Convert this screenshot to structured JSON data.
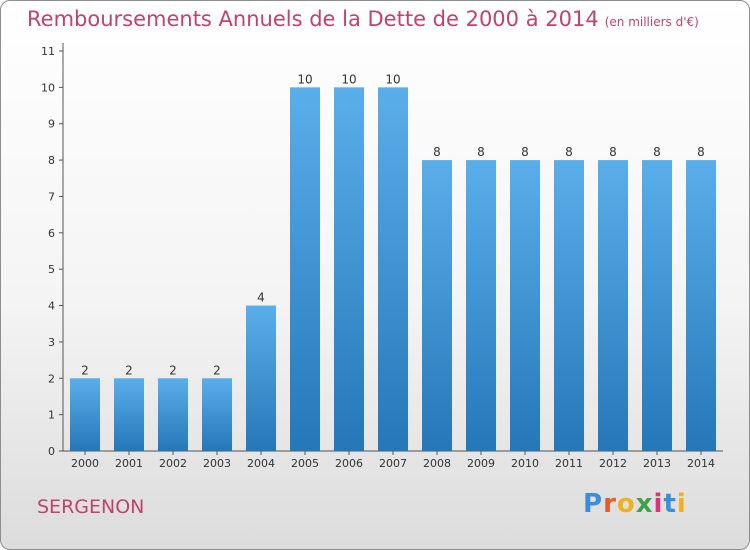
{
  "header": {
    "title": "Remboursements Annuels de la Dette de 2000 à 2014",
    "unit": "(en milliers d'€)"
  },
  "footer": {
    "place": "SERGENON",
    "logo": {
      "letters": [
        "P",
        "r",
        "o",
        "x",
        "i",
        "t",
        "i"
      ],
      "colors": [
        "#3a8fd8",
        "#e85a2a",
        "#f0b120",
        "#3fa34d",
        "#d8357a",
        "#3a8fd8",
        "#f0b120"
      ]
    }
  },
  "chart_data": {
    "type": "bar",
    "title": "Remboursements Annuels de la Dette de 2000 à 2014",
    "categories": [
      "2000",
      "2001",
      "2002",
      "2003",
      "2004",
      "2005",
      "2006",
      "2007",
      "2008",
      "2009",
      "2010",
      "2011",
      "2012",
      "2013",
      "2014"
    ],
    "values": [
      2,
      2,
      2,
      2,
      4,
      10,
      10,
      10,
      8,
      8,
      8,
      8,
      8,
      8,
      8
    ],
    "ylim": [
      0,
      11
    ],
    "yticks": [
      0,
      1,
      2,
      3,
      4,
      5,
      6,
      7,
      8,
      9,
      10,
      11
    ],
    "data_labels": [
      "2",
      "2",
      "2",
      "2",
      "4",
      "10",
      "10",
      "10",
      "8",
      "8",
      "8",
      "8",
      "8",
      "8",
      "8"
    ],
    "bar_color": "#3d95dc",
    "grid": false,
    "legend": "none"
  }
}
